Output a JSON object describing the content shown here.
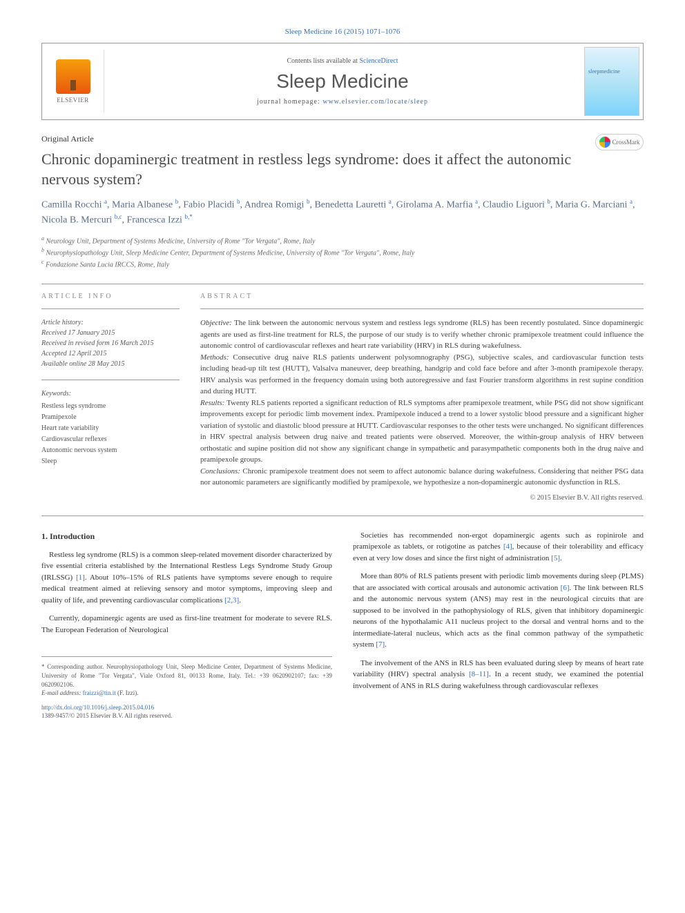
{
  "header": {
    "citation": "Sleep Medicine 16 (2015) 1071–1076",
    "contents_prefix": "Contents lists available at ",
    "contents_link": "ScienceDirect",
    "journal_title": "Sleep Medicine",
    "homepage_prefix": "journal homepage: ",
    "homepage_url": "www.elsevier.com/locate/sleep",
    "elsevier_label": "ELSEVIER",
    "crossmark_label": "CrossMark"
  },
  "article": {
    "type": "Original Article",
    "title": "Chronic dopaminergic treatment in restless legs syndrome: does it affect the autonomic nervous system?",
    "authors_html": "Camilla Rocchi <sup>a</sup>, Maria Albanese <sup>b</sup>, Fabio Placidi <sup>b</sup>, Andrea Romigi <sup>b</sup>, Benedetta Lauretti <sup>a</sup>, Girolama A. Marfia <sup>a</sup>, Claudio Liguori <sup>b</sup>, Maria G. Marciani <sup>a</sup>, Nicola B. Mercuri <sup>b,c</sup>, Francesca Izzi <sup>b,*</sup>",
    "affiliations": [
      {
        "sup": "a",
        "text": "Neurology Unit, Department of Systems Medicine, University of Rome \"Tor Vergata\", Rome, Italy"
      },
      {
        "sup": "b",
        "text": "Neurophysiopathology Unit, Sleep Medicine Center, Department of Systems Medicine, University of Rome \"Tor Vergata\", Rome, Italy"
      },
      {
        "sup": "c",
        "text": "Fondazione Santa Lucia IRCCS, Rome, Italy"
      }
    ]
  },
  "info": {
    "heading": "ARTICLE INFO",
    "history_label": "Article history:",
    "history": [
      "Received 17 January 2015",
      "Received in revised form 16 March 2015",
      "Accepted 12 April 2015",
      "Available online 28 May 2015"
    ],
    "keywords_label": "Keywords:",
    "keywords": [
      "Restless legs syndrome",
      "Pramipexole",
      "Heart rate variability",
      "Cardiovascular reflexes",
      "Autonomic nervous system",
      "Sleep"
    ]
  },
  "abstract": {
    "heading": "ABSTRACT",
    "objective_label": "Objective:",
    "objective": "The link between the autonomic nervous system and restless legs syndrome (RLS) has been recently postulated. Since dopaminergic agents are used as first-line treatment for RLS, the purpose of our study is to verify whether chronic pramipexole treatment could influence the autonomic control of cardiovascular reflexes and heart rate variability (HRV) in RLS during wakefulness.",
    "methods_label": "Methods:",
    "methods": "Consecutive drug naive RLS patients underwent polysomnography (PSG), subjective scales, and cardiovascular function tests including head-up tilt test (HUTT), Valsalva maneuver, deep breathing, handgrip and cold face before and after 3-month pramipexole therapy. HRV analysis was performed in the frequency domain using both autoregressive and fast Fourier transform algorithms in rest supine condition and during HUTT.",
    "results_label": "Results:",
    "results": "Twenty RLS patients reported a significant reduction of RLS symptoms after pramipexole treatment, while PSG did not show significant improvements except for periodic limb movement index. Pramipexole induced a trend to a lower systolic blood pressure and a significant higher variation of systolic and diastolic blood pressure at HUTT. Cardiovascular responses to the other tests were unchanged. No significant differences in HRV spectral analysis between drug naive and treated patients were observed. Moreover, the within-group analysis of HRV between orthostatic and supine position did not show any significant change in sympathetic and parasympathetic components both in the drug naive and pramipexole groups.",
    "conclusions_label": "Conclusions:",
    "conclusions": "Chronic pramipexole treatment does not seem to affect autonomic balance during wakefulness. Considering that neither PSG data nor autonomic parameters are significantly modified by pramipexole, we hypothesize a non-dopaminergic autonomic dysfunction in RLS.",
    "copyright": "© 2015 Elsevier B.V. All rights reserved."
  },
  "body": {
    "intro_heading": "1. Introduction",
    "col1_p1": "Restless leg syndrome (RLS) is a common sleep-related movement disorder characterized by five essential criteria established by the International Restless Legs Syndrome Study Group (IRLSSG) [1]. About 10%–15% of RLS patients have symptoms severe enough to require medical treatment aimed at relieving sensory and motor symptoms, improving sleep and quality of life, and preventing cardiovascular complications [2,3].",
    "col1_p2": "Currently, dopaminergic agents are used as first-line treatment for moderate to severe RLS. The European Federation of Neurological",
    "col2_p1": "Societies has recommended non-ergot dopaminergic agents such as ropinirole and pramipexole as tablets, or rotigotine as patches [4], because of their tolerability and efficacy even at very low doses and since the first night of administration [5].",
    "col2_p2": "More than 80% of RLS patients present with periodic limb movements during sleep (PLMS) that are associated with cortical arousals and autonomic activation [6]. The link between RLS and the autonomic nervous system (ANS) may rest in the neurological circuits that are supposed to be involved in the pathophysiology of RLS, given that inhibitory dopaminergic neurons of the hypothalamic A11 nucleus project to the dorsal and ventral horns and to the intermediate-lateral nucleus, which acts as the final common pathway of the sympathetic system [7].",
    "col2_p3": "The involvement of the ANS in RLS has been evaluated during sleep by means of heart rate variability (HRV) spectral analysis [8–11]. In a recent study, we examined the potential involvement of ANS in RLS during wakefulness through cardiovascular reflexes"
  },
  "footer": {
    "corresponding": "* Corresponding author. Neurophysiopathology Unit, Sleep Medicine Center, Department of Systems Medicine, University of Rome \"Tor Vergata\", Viale Oxford 81, 00133 Rome, Italy. Tel.: +39 0620902107; fax: +39 0620902106.",
    "email_label": "E-mail address:",
    "email": "fraizzi@tin.it",
    "email_name": "(F. Izzi).",
    "doi": "http://dx.doi.org/10.1016/j.sleep.2015.04.016",
    "issn": "1389-9457/© 2015 Elsevier B.V. All rights reserved."
  },
  "colors": {
    "link": "#3b6eb5",
    "text": "#333333",
    "muted": "#666666",
    "border": "#999999"
  }
}
